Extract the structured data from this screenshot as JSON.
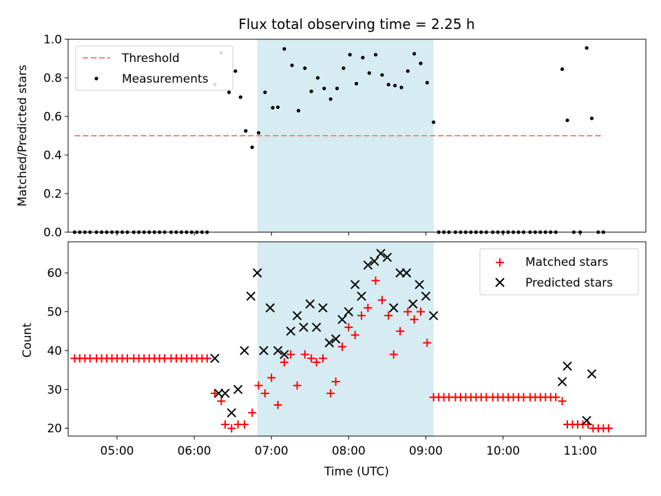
{
  "title": "Flux total observing time = 2.25 h",
  "xlabel": "Time (UTC)",
  "shade_color": "#add8e6",
  "chart_data": [
    {
      "type": "scatter",
      "panel": "top",
      "ylabel": "Matched/Predicted stars",
      "xlim": [
        "04:22",
        "11:51"
      ],
      "ylim": [
        0,
        1.0
      ],
      "yticks": [
        "0.0",
        "0.2",
        "0.4",
        "0.6",
        "0.8",
        "1.0"
      ],
      "legend_position": "upper left",
      "shaded_interval": [
        "06:49",
        "09:06"
      ],
      "threshold": {
        "name": "Threshold",
        "value": 0.5,
        "x": [
          "04:27",
          "11:18"
        ],
        "color": "#ff7f7f",
        "style": "dashed"
      },
      "series": [
        {
          "name": "Measurements",
          "color": "#000000",
          "points": [
            [
              "04:27",
              0
            ],
            [
              "04:31",
              0
            ],
            [
              "04:35",
              0
            ],
            [
              "04:39",
              0
            ],
            [
              "04:44",
              0
            ],
            [
              "04:48",
              0
            ],
            [
              "04:52",
              0
            ],
            [
              "04:56",
              0
            ],
            [
              "05:00",
              0
            ],
            [
              "05:04",
              0
            ],
            [
              "05:08",
              0
            ],
            [
              "05:13",
              0
            ],
            [
              "05:17",
              0
            ],
            [
              "05:21",
              0
            ],
            [
              "05:25",
              0
            ],
            [
              "05:29",
              0
            ],
            [
              "05:33",
              0
            ],
            [
              "05:37",
              0
            ],
            [
              "05:42",
              0
            ],
            [
              "05:46",
              0
            ],
            [
              "05:50",
              0
            ],
            [
              "05:54",
              0
            ],
            [
              "05:58",
              0
            ],
            [
              "06:02",
              0
            ],
            [
              "06:06",
              0
            ],
            [
              "06:10",
              0
            ],
            [
              "06:16",
              0.765
            ],
            [
              "06:21",
              0.93
            ],
            [
              "06:27",
              0.725
            ],
            [
              "06:32",
              0.835
            ],
            [
              "06:36",
              0.7
            ],
            [
              "06:40",
              0.525
            ],
            [
              "06:45",
              0.44
            ],
            [
              "06:50",
              0.515
            ],
            [
              "06:55",
              0.725
            ],
            [
              "07:01",
              0.645
            ],
            [
              "07:05",
              0.648
            ],
            [
              "07:10",
              0.95
            ],
            [
              "07:16",
              0.865
            ],
            [
              "07:21",
              0.63
            ],
            [
              "07:26",
              0.85
            ],
            [
              "07:31",
              0.73
            ],
            [
              "07:36",
              0.8
            ],
            [
              "07:41",
              0.745
            ],
            [
              "07:46",
              0.69
            ],
            [
              "07:51",
              0.745
            ],
            [
              "07:56",
              0.85
            ],
            [
              "08:01",
              0.92
            ],
            [
              "08:06",
              0.77
            ],
            [
              "08:11",
              0.905
            ],
            [
              "08:16",
              0.825
            ],
            [
              "08:21",
              0.92
            ],
            [
              "08:26",
              0.815
            ],
            [
              "08:31",
              0.765
            ],
            [
              "08:36",
              0.76
            ],
            [
              "08:41",
              0.75
            ],
            [
              "08:46",
              0.835
            ],
            [
              "08:51",
              0.925
            ],
            [
              "08:56",
              0.875
            ],
            [
              "09:01",
              0.775
            ],
            [
              "09:06",
              0.57
            ],
            [
              "09:10",
              0
            ],
            [
              "09:14",
              0
            ],
            [
              "09:18",
              0
            ],
            [
              "09:23",
              0
            ],
            [
              "09:27",
              0
            ],
            [
              "09:31",
              0
            ],
            [
              "09:35",
              0
            ],
            [
              "09:39",
              0
            ],
            [
              "09:43",
              0
            ],
            [
              "09:47",
              0
            ],
            [
              "09:52",
              0
            ],
            [
              "09:56",
              0
            ],
            [
              "10:00",
              0
            ],
            [
              "10:04",
              0
            ],
            [
              "10:08",
              0
            ],
            [
              "10:12",
              0
            ],
            [
              "10:16",
              0
            ],
            [
              "10:21",
              0
            ],
            [
              "10:25",
              0
            ],
            [
              "10:29",
              0
            ],
            [
              "10:33",
              0
            ],
            [
              "10:37",
              0
            ],
            [
              "10:41",
              0
            ],
            [
              "10:46",
              0.845
            ],
            [
              "10:50",
              0.58
            ],
            [
              "10:55",
              0
            ],
            [
              "11:00",
              0
            ],
            [
              "11:05",
              0.955
            ],
            [
              "11:09",
              0.59
            ],
            [
              "11:14",
              0
            ],
            [
              "11:18",
              0
            ]
          ]
        }
      ]
    },
    {
      "type": "scatter",
      "panel": "bottom",
      "ylabel": "Count",
      "xlim": [
        "04:22",
        "11:51"
      ],
      "ylim": [
        18,
        68
      ],
      "yticks": [
        "20",
        "30",
        "40",
        "50",
        "60"
      ],
      "xticks": [
        "05:00",
        "06:00",
        "07:00",
        "08:00",
        "09:00",
        "10:00",
        "11:00"
      ],
      "legend_position": "upper right",
      "shaded_interval": [
        "06:49",
        "09:06"
      ],
      "series": [
        {
          "name": "Matched stars",
          "marker": "+",
          "color": "#ff0000",
          "points": [
            [
              "04:27",
              38
            ],
            [
              "04:31",
              38
            ],
            [
              "04:35",
              38
            ],
            [
              "04:39",
              38
            ],
            [
              "04:44",
              38
            ],
            [
              "04:48",
              38
            ],
            [
              "04:52",
              38
            ],
            [
              "04:56",
              38
            ],
            [
              "05:00",
              38
            ],
            [
              "05:04",
              38
            ],
            [
              "05:08",
              38
            ],
            [
              "05:13",
              38
            ],
            [
              "05:17",
              38
            ],
            [
              "05:21",
              38
            ],
            [
              "05:25",
              38
            ],
            [
              "05:29",
              38
            ],
            [
              "05:33",
              38
            ],
            [
              "05:37",
              38
            ],
            [
              "05:42",
              38
            ],
            [
              "05:46",
              38
            ],
            [
              "05:50",
              38
            ],
            [
              "05:54",
              38
            ],
            [
              "05:58",
              38
            ],
            [
              "06:02",
              38
            ],
            [
              "06:06",
              38
            ],
            [
              "06:10",
              38
            ],
            [
              "06:16",
              29
            ],
            [
              "06:21",
              27
            ],
            [
              "06:24",
              21
            ],
            [
              "06:29",
              20
            ],
            [
              "06:34",
              21
            ],
            [
              "06:39",
              21
            ],
            [
              "06:45",
              24
            ],
            [
              "06:50",
              31
            ],
            [
              "06:55",
              29
            ],
            [
              "07:00",
              33
            ],
            [
              "07:05",
              26
            ],
            [
              "07:10",
              37
            ],
            [
              "07:15",
              39
            ],
            [
              "07:20",
              31
            ],
            [
              "07:26",
              39
            ],
            [
              "07:31",
              38
            ],
            [
              "07:35",
              37
            ],
            [
              "07:40",
              38
            ],
            [
              "07:46",
              29
            ],
            [
              "07:50",
              32
            ],
            [
              "07:55",
              41
            ],
            [
              "08:00",
              46
            ],
            [
              "08:05",
              44
            ],
            [
              "08:10",
              49
            ],
            [
              "08:15",
              51
            ],
            [
              "08:21",
              58
            ],
            [
              "08:26",
              53
            ],
            [
              "08:31",
              49
            ],
            [
              "08:35",
              39
            ],
            [
              "08:40",
              45
            ],
            [
              "08:46",
              50
            ],
            [
              "08:51",
              48
            ],
            [
              "08:56",
              50
            ],
            [
              "09:01",
              42
            ],
            [
              "09:06",
              28
            ],
            [
              "09:10",
              28
            ],
            [
              "09:14",
              28
            ],
            [
              "09:18",
              28
            ],
            [
              "09:23",
              28
            ],
            [
              "09:27",
              28
            ],
            [
              "09:31",
              28
            ],
            [
              "09:35",
              28
            ],
            [
              "09:39",
              28
            ],
            [
              "09:43",
              28
            ],
            [
              "09:47",
              28
            ],
            [
              "09:52",
              28
            ],
            [
              "09:56",
              28
            ],
            [
              "10:00",
              28
            ],
            [
              "10:04",
              28
            ],
            [
              "10:08",
              28
            ],
            [
              "10:12",
              28
            ],
            [
              "10:16",
              28
            ],
            [
              "10:21",
              28
            ],
            [
              "10:25",
              28
            ],
            [
              "10:29",
              28
            ],
            [
              "10:33",
              28
            ],
            [
              "10:37",
              28
            ],
            [
              "10:41",
              28
            ],
            [
              "10:46",
              27
            ],
            [
              "10:50",
              21
            ],
            [
              "10:54",
              21
            ],
            [
              "10:58",
              21
            ],
            [
              "11:02",
              21
            ],
            [
              "11:06",
              21
            ],
            [
              "11:10",
              20
            ],
            [
              "11:14",
              20
            ],
            [
              "11:18",
              20
            ],
            [
              "11:22",
              20
            ]
          ]
        },
        {
          "name": "Predicted stars",
          "marker": "x",
          "color": "#000000",
          "points": [
            [
              "06:16",
              38
            ],
            [
              "06:19",
              29
            ],
            [
              "06:24",
              29
            ],
            [
              "06:29",
              24
            ],
            [
              "06:34",
              30
            ],
            [
              "06:39",
              40
            ],
            [
              "06:44",
              54
            ],
            [
              "06:49",
              60
            ],
            [
              "06:54",
              40
            ],
            [
              "06:59",
              51
            ],
            [
              "07:05",
              40
            ],
            [
              "07:10",
              39
            ],
            [
              "07:15",
              45
            ],
            [
              "07:20",
              49
            ],
            [
              "07:25",
              46
            ],
            [
              "07:30",
              52
            ],
            [
              "07:35",
              46
            ],
            [
              "07:40",
              51
            ],
            [
              "07:45",
              42
            ],
            [
              "07:50",
              43
            ],
            [
              "07:55",
              48
            ],
            [
              "08:00",
              50
            ],
            [
              "08:05",
              57
            ],
            [
              "08:10",
              54
            ],
            [
              "08:15",
              62
            ],
            [
              "08:20",
              63
            ],
            [
              "08:25",
              65
            ],
            [
              "08:30",
              64
            ],
            [
              "08:35",
              51
            ],
            [
              "08:40",
              60
            ],
            [
              "08:45",
              60
            ],
            [
              "08:50",
              52
            ],
            [
              "08:55",
              57
            ],
            [
              "09:00",
              54
            ],
            [
              "09:06",
              49
            ],
            [
              "10:46",
              32
            ],
            [
              "10:50",
              36
            ],
            [
              "11:05",
              22
            ],
            [
              "11:09",
              34
            ]
          ]
        }
      ]
    }
  ]
}
